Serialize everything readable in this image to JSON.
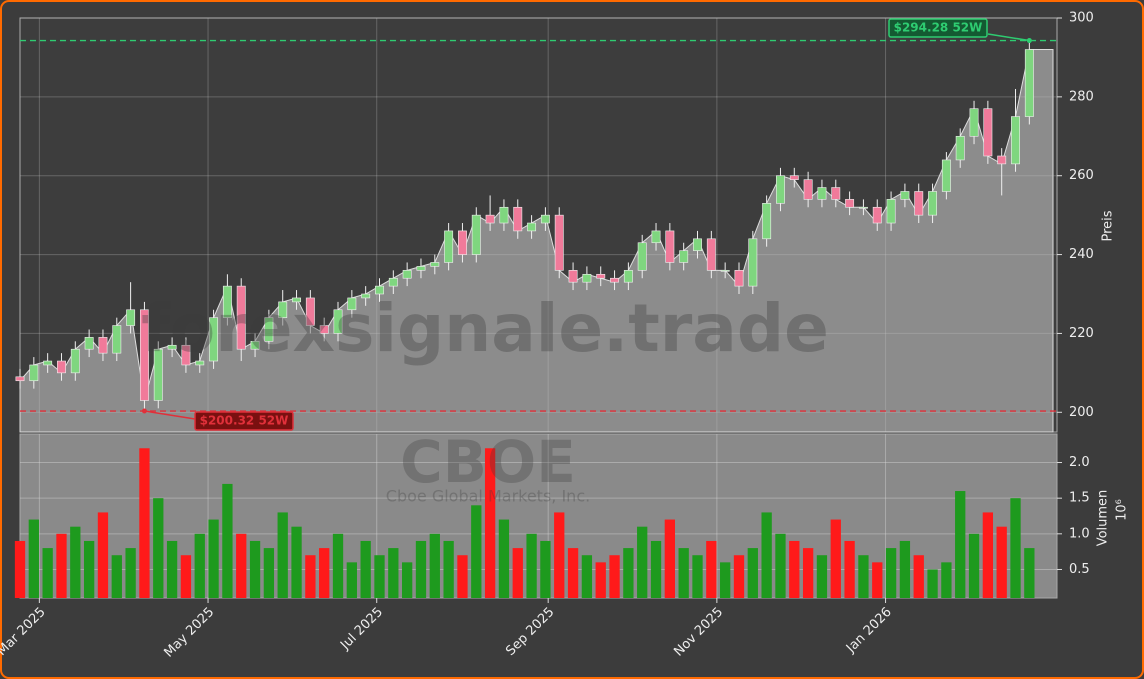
{
  "chart_data": {
    "type": "candlestick",
    "x": [
      0,
      5,
      10,
      15,
      20,
      25,
      30,
      35,
      40,
      45,
      50,
      55,
      60,
      65,
      70,
      75,
      80,
      85,
      90,
      95,
      100,
      105,
      110,
      115,
      120,
      125,
      130,
      135,
      140,
      145,
      150,
      155,
      160,
      165,
      170,
      175,
      180,
      185,
      190,
      195,
      200,
      205,
      210,
      215,
      220,
      225,
      230,
      235,
      240,
      245,
      250,
      255,
      260,
      265,
      270,
      275,
      280,
      285,
      290,
      295,
      300,
      305,
      310,
      315,
      320,
      325,
      330,
      335,
      340,
      345,
      350,
      355,
      360,
      365
    ],
    "open": [
      209,
      208,
      212,
      213,
      210,
      216,
      219,
      215,
      222,
      226,
      203,
      216,
      217,
      212,
      213,
      224,
      232,
      216,
      218,
      224,
      228,
      229,
      222,
      220,
      226,
      229,
      230,
      232,
      234,
      236,
      237,
      238,
      246,
      240,
      250,
      248,
      252,
      246,
      248,
      250,
      236,
      233,
      235,
      234,
      233,
      236,
      243,
      246,
      238,
      241,
      244,
      236,
      236,
      232,
      244,
      253,
      260,
      259,
      254,
      257,
      254,
      252,
      252,
      248,
      254,
      256,
      250,
      256,
      264,
      270,
      277,
      265,
      263,
      275
    ],
    "high": [
      211,
      214,
      215,
      215,
      218,
      221,
      221,
      224,
      233,
      228,
      218,
      219,
      219,
      215,
      226,
      235,
      234,
      220,
      226,
      231,
      231,
      231,
      224,
      228,
      231,
      232,
      234,
      236,
      238,
      239,
      240,
      248,
      248,
      252,
      255,
      254,
      254,
      250,
      252,
      252,
      238,
      237,
      237,
      236,
      238,
      245,
      248,
      248,
      243,
      246,
      246,
      238,
      238,
      246,
      255,
      262,
      262,
      261,
      259,
      259,
      256,
      254,
      254,
      256,
      258,
      258,
      258,
      266,
      272,
      279,
      279,
      267,
      282,
      294.28
    ],
    "low": [
      206,
      206,
      210,
      208,
      208,
      214,
      213,
      213,
      220,
      200.32,
      201,
      214,
      210,
      210,
      211,
      222,
      213,
      214,
      216,
      222,
      226,
      220,
      218,
      218,
      224,
      227,
      228,
      230,
      232,
      234,
      235,
      236,
      238,
      238,
      246,
      246,
      244,
      244,
      246,
      234,
      231,
      231,
      232,
      231,
      231,
      234,
      241,
      236,
      236,
      239,
      234,
      234,
      230,
      230,
      242,
      251,
      257,
      252,
      252,
      252,
      250,
      250,
      246,
      246,
      252,
      248,
      248,
      254,
      262,
      268,
      263,
      255,
      261,
      273
    ],
    "close": [
      208,
      212,
      213,
      210,
      216,
      219,
      215,
      222,
      226,
      203,
      216,
      217,
      212,
      213,
      224,
      232,
      216,
      218,
      224,
      228,
      229,
      222,
      220,
      226,
      229,
      230,
      232,
      234,
      236,
      237,
      238,
      246,
      240,
      250,
      248,
      252,
      246,
      248,
      250,
      236,
      233,
      235,
      234,
      233,
      236,
      243,
      246,
      238,
      241,
      244,
      236,
      236,
      232,
      244,
      253,
      260,
      259,
      254,
      257,
      254,
      252,
      252,
      248,
      254,
      256,
      250,
      256,
      264,
      270,
      277,
      265,
      263,
      275,
      292
    ],
    "volume": [
      0.9,
      1.2,
      0.8,
      1.0,
      1.1,
      0.9,
      1.3,
      0.7,
      0.8,
      2.2,
      1.5,
      0.9,
      0.7,
      1.0,
      1.2,
      1.7,
      1.0,
      0.9,
      0.8,
      1.3,
      1.1,
      0.7,
      0.8,
      1.0,
      0.6,
      0.9,
      0.7,
      0.8,
      0.6,
      0.9,
      1.0,
      0.9,
      0.7,
      1.4,
      2.2,
      1.2,
      0.8,
      1.0,
      0.9,
      1.3,
      0.8,
      0.7,
      0.6,
      0.7,
      0.8,
      1.1,
      0.9,
      1.2,
      0.8,
      0.7,
      0.9,
      0.6,
      0.7,
      0.8,
      1.3,
      1.0,
      0.9,
      0.8,
      0.7,
      1.2,
      0.9,
      0.7,
      0.6,
      0.8,
      0.9,
      0.7,
      0.5,
      0.6,
      1.6,
      1.0,
      1.3,
      1.1,
      1.5,
      0.8
    ],
    "xlim": [
      0,
      375
    ],
    "xticks": [
      {
        "value": 7,
        "label": "Mar 2025"
      },
      {
        "value": 68,
        "label": "May 2025"
      },
      {
        "value": 129,
        "label": "Jul 2025"
      },
      {
        "value": 191,
        "label": "Sep 2025"
      },
      {
        "value": 252,
        "label": "Nov 2025"
      },
      {
        "value": 313,
        "label": "Jan 2026"
      }
    ],
    "ylim": [
      195,
      300
    ],
    "yticks": [
      200,
      220,
      240,
      260,
      280,
      300
    ],
    "ylabel": "Preis",
    "volume_ylim": [
      0.1,
      2.4
    ],
    "volume_yticks": [
      0.5,
      {
        "value": 1,
        "label": "1.0"
      },
      1.5,
      {
        "value": 2,
        "label": "2.0"
      }
    ],
    "volume_ylabel": "Volumen",
    "volume_scale_label": "10⁶",
    "up_color": "#1e9a1e",
    "down_color": "#ff1a1a",
    "area_color": "#8c8c8c",
    "grid": true,
    "annotations": [
      {
        "text": "$294.28 52W",
        "value": 294.28,
        "color": "#2ecc71"
      },
      {
        "text": "$200.32 52W",
        "value": 200.32,
        "color": "#e0303a"
      }
    ],
    "watermark": "forexsignale.trade",
    "watermark_symbol": "CBOE",
    "watermark_company": "Cboe Global Markets, Inc."
  }
}
